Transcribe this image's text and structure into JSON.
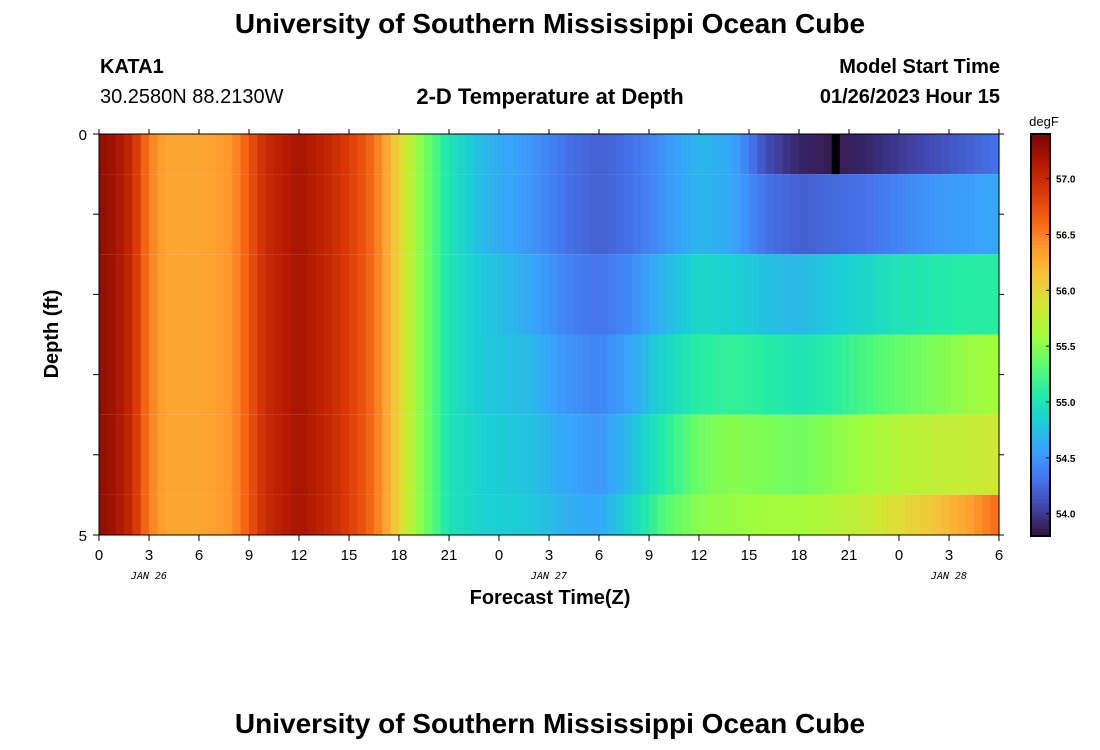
{
  "page": {
    "title": "University of Southern Mississippi Ocean Cube",
    "footer_title": "University of Southern Mississippi Ocean Cube",
    "station_id": "KATA1",
    "coordinates": "30.2580N  88.2130W",
    "plot_title": "2-D Temperature at Depth",
    "model_start_label": "Model Start Time",
    "model_start_value": "01/26/2023 Hour 15"
  },
  "chart_data": {
    "type": "heatmap",
    "title": "2-D Temperature at Depth",
    "xlabel": "Forecast Time(Z)",
    "ylabel": "Depth (ft)",
    "x_tick_labels": [
      "0",
      "3",
      "6",
      "9",
      "12",
      "15",
      "18",
      "21",
      "0",
      "3",
      "6",
      "9",
      "12",
      "15",
      "18",
      "21",
      "0",
      "3",
      "6"
    ],
    "x_hours": [
      0,
      54
    ],
    "date_labels": [
      {
        "label": "JAN 26",
        "hour": 3
      },
      {
        "label": "JAN 27",
        "hour": 27
      },
      {
        "label": "JAN 28",
        "hour": 51
      }
    ],
    "y_tick_labels": [
      "0",
      "5"
    ],
    "ylim": [
      0,
      5
    ],
    "colorbar": {
      "unit": "degF",
      "min": 53.8,
      "max": 57.4,
      "ticks": [
        "54.0",
        "54.5",
        "55.0",
        "55.5",
        "56.0",
        "56.5",
        "57.0"
      ],
      "colormap": [
        "#30123b",
        "#4145ab",
        "#4675ed",
        "#39a2fc",
        "#1bcfd4",
        "#24eca6",
        "#61fc6c",
        "#a4fc3b",
        "#d1e834",
        "#f3c63a",
        "#fe9b2d",
        "#f36315",
        "#d93806",
        "#b11901",
        "#7a0402"
      ]
    },
    "layers": [
      {
        "depth_from": 0,
        "depth_to": 0.5,
        "profile": [
          [
            0,
            57.3
          ],
          [
            1,
            57.2
          ],
          [
            2,
            57.0
          ],
          [
            3,
            56.5
          ],
          [
            4,
            56.3
          ],
          [
            6,
            56.3
          ],
          [
            8,
            56.4
          ],
          [
            10,
            57.0
          ],
          [
            12,
            57.2
          ],
          [
            14,
            57.0
          ],
          [
            16,
            56.7
          ],
          [
            17,
            56.4
          ],
          [
            18,
            56.0
          ],
          [
            19,
            55.6
          ],
          [
            20,
            55.3
          ],
          [
            21,
            55.0
          ],
          [
            23,
            54.7
          ],
          [
            26,
            54.5
          ],
          [
            28,
            54.3
          ],
          [
            30,
            54.2
          ],
          [
            32,
            54.3
          ],
          [
            34,
            54.5
          ],
          [
            36,
            54.7
          ],
          [
            38,
            54.6
          ],
          [
            40,
            54.1
          ],
          [
            42,
            53.9
          ],
          [
            44,
            53.85
          ],
          [
            46,
            53.9
          ],
          [
            48,
            54.0
          ],
          [
            50,
            54.1
          ],
          [
            52,
            54.2
          ],
          [
            54,
            54.3
          ]
        ]
      },
      {
        "depth_from": 0.5,
        "depth_to": 1.5,
        "profile": [
          [
            0,
            57.3
          ],
          [
            1,
            57.2
          ],
          [
            2,
            57.0
          ],
          [
            3,
            56.5
          ],
          [
            4,
            56.3
          ],
          [
            6,
            56.3
          ],
          [
            8,
            56.4
          ],
          [
            10,
            57.0
          ],
          [
            12,
            57.2
          ],
          [
            14,
            57.0
          ],
          [
            16,
            56.7
          ],
          [
            17,
            56.4
          ],
          [
            18,
            56.0
          ],
          [
            19,
            55.6
          ],
          [
            20,
            55.3
          ],
          [
            21,
            55.0
          ],
          [
            23,
            54.7
          ],
          [
            26,
            54.5
          ],
          [
            28,
            54.3
          ],
          [
            30,
            54.2
          ],
          [
            32,
            54.3
          ],
          [
            34,
            54.5
          ],
          [
            36,
            54.7
          ],
          [
            38,
            54.6
          ],
          [
            40,
            54.3
          ],
          [
            42,
            54.2
          ],
          [
            44,
            54.25
          ],
          [
            46,
            54.3
          ],
          [
            48,
            54.4
          ],
          [
            50,
            54.5
          ],
          [
            52,
            54.55
          ],
          [
            54,
            54.6
          ]
        ]
      },
      {
        "depth_from": 1.5,
        "depth_to": 2.5,
        "profile": [
          [
            0,
            57.3
          ],
          [
            1,
            57.2
          ],
          [
            2,
            57.0
          ],
          [
            3,
            56.5
          ],
          [
            4,
            56.3
          ],
          [
            6,
            56.3
          ],
          [
            8,
            56.4
          ],
          [
            10,
            57.0
          ],
          [
            12,
            57.2
          ],
          [
            14,
            57.0
          ],
          [
            16,
            56.7
          ],
          [
            17,
            56.4
          ],
          [
            18,
            56.0
          ],
          [
            19,
            55.6
          ],
          [
            20,
            55.3
          ],
          [
            21,
            55.0
          ],
          [
            23,
            54.8
          ],
          [
            26,
            54.6
          ],
          [
            28,
            54.4
          ],
          [
            30,
            54.3
          ],
          [
            32,
            54.45
          ],
          [
            34,
            54.7
          ],
          [
            36,
            54.9
          ],
          [
            38,
            54.85
          ],
          [
            40,
            54.75
          ],
          [
            42,
            54.7
          ],
          [
            44,
            54.8
          ],
          [
            46,
            54.9
          ],
          [
            48,
            55.0
          ],
          [
            50,
            55.05
          ],
          [
            52,
            55.1
          ],
          [
            54,
            55.1
          ]
        ]
      },
      {
        "depth_from": 2.5,
        "depth_to": 3.5,
        "profile": [
          [
            0,
            57.3
          ],
          [
            1,
            57.2
          ],
          [
            2,
            57.0
          ],
          [
            3,
            56.5
          ],
          [
            4,
            56.3
          ],
          [
            6,
            56.3
          ],
          [
            8,
            56.4
          ],
          [
            10,
            57.0
          ],
          [
            12,
            57.2
          ],
          [
            14,
            57.0
          ],
          [
            16,
            56.7
          ],
          [
            17,
            56.4
          ],
          [
            18,
            56.0
          ],
          [
            19,
            55.6
          ],
          [
            20,
            55.3
          ],
          [
            21,
            55.0
          ],
          [
            23,
            54.8
          ],
          [
            26,
            54.7
          ],
          [
            28,
            54.5
          ],
          [
            30,
            54.4
          ],
          [
            32,
            54.6
          ],
          [
            34,
            54.9
          ],
          [
            36,
            55.1
          ],
          [
            38,
            55.15
          ],
          [
            40,
            55.1
          ],
          [
            42,
            55.0
          ],
          [
            44,
            55.1
          ],
          [
            46,
            55.25
          ],
          [
            48,
            55.35
          ],
          [
            50,
            55.45
          ],
          [
            52,
            55.55
          ],
          [
            54,
            55.6
          ]
        ]
      },
      {
        "depth_from": 3.5,
        "depth_to": 4.5,
        "profile": [
          [
            0,
            57.3
          ],
          [
            1,
            57.2
          ],
          [
            2,
            57.0
          ],
          [
            3,
            56.5
          ],
          [
            4,
            56.3
          ],
          [
            6,
            56.3
          ],
          [
            8,
            56.4
          ],
          [
            10,
            57.0
          ],
          [
            12,
            57.2
          ],
          [
            14,
            57.0
          ],
          [
            16,
            56.7
          ],
          [
            17,
            56.4
          ],
          [
            18,
            56.0
          ],
          [
            19,
            55.6
          ],
          [
            20,
            55.3
          ],
          [
            21,
            55.0
          ],
          [
            23,
            54.85
          ],
          [
            26,
            54.75
          ],
          [
            28,
            54.6
          ],
          [
            30,
            54.5
          ],
          [
            32,
            54.75
          ],
          [
            34,
            55.1
          ],
          [
            36,
            55.4
          ],
          [
            38,
            55.5
          ],
          [
            40,
            55.45
          ],
          [
            42,
            55.4
          ],
          [
            44,
            55.5
          ],
          [
            46,
            55.6
          ],
          [
            48,
            55.7
          ],
          [
            50,
            55.75
          ],
          [
            52,
            55.8
          ],
          [
            54,
            55.85
          ]
        ]
      },
      {
        "depth_from": 4.5,
        "depth_to": 5,
        "profile": [
          [
            0,
            57.3
          ],
          [
            1,
            57.2
          ],
          [
            2,
            57.0
          ],
          [
            3,
            56.5
          ],
          [
            4,
            56.3
          ],
          [
            6,
            56.3
          ],
          [
            8,
            56.4
          ],
          [
            10,
            57.0
          ],
          [
            12,
            57.2
          ],
          [
            14,
            57.0
          ],
          [
            16,
            56.7
          ],
          [
            17,
            56.4
          ],
          [
            18,
            56.0
          ],
          [
            19,
            55.6
          ],
          [
            20,
            55.3
          ],
          [
            21,
            55.0
          ],
          [
            23,
            54.85
          ],
          [
            26,
            54.8
          ],
          [
            28,
            54.65
          ],
          [
            30,
            54.6
          ],
          [
            32,
            54.9
          ],
          [
            34,
            55.3
          ],
          [
            36,
            55.5
          ],
          [
            38,
            55.55
          ],
          [
            40,
            55.6
          ],
          [
            42,
            55.6
          ],
          [
            44,
            55.7
          ],
          [
            46,
            55.8
          ],
          [
            48,
            55.95
          ],
          [
            50,
            56.1
          ],
          [
            52,
            56.3
          ],
          [
            54,
            56.6
          ]
        ]
      }
    ],
    "missing_marker": {
      "hour": 44.2,
      "depth_from": 0,
      "depth_to": 0.5,
      "color": "#000000"
    }
  }
}
